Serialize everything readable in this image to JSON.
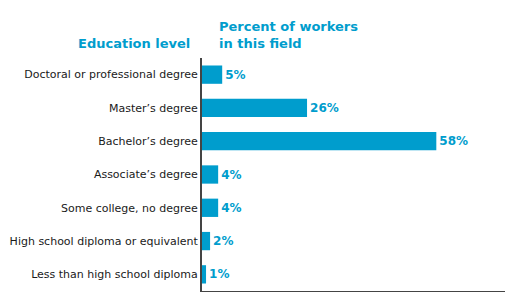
{
  "chart_data": {
    "type": "bar",
    "orientation": "horizontal",
    "ylabel": "Education level",
    "xlabel": "Percent of workers\nin this field",
    "categories": [
      "Doctoral or professional degree",
      "Master’s degree",
      "Bachelor’s degree",
      "Associate’s degree",
      "Some college, no degree",
      "High school diploma or equivalent",
      "Less than high school diploma"
    ],
    "values": [
      5,
      26,
      58,
      4,
      4,
      2,
      1
    ],
    "value_labels": [
      "5%",
      "26%",
      "58%",
      "4%",
      "4%",
      "2%",
      "1%"
    ],
    "data_labels": true,
    "color": "#009dcd",
    "xlim": [
      0,
      75
    ],
    "grid": false,
    "tick_labels": "y"
  }
}
